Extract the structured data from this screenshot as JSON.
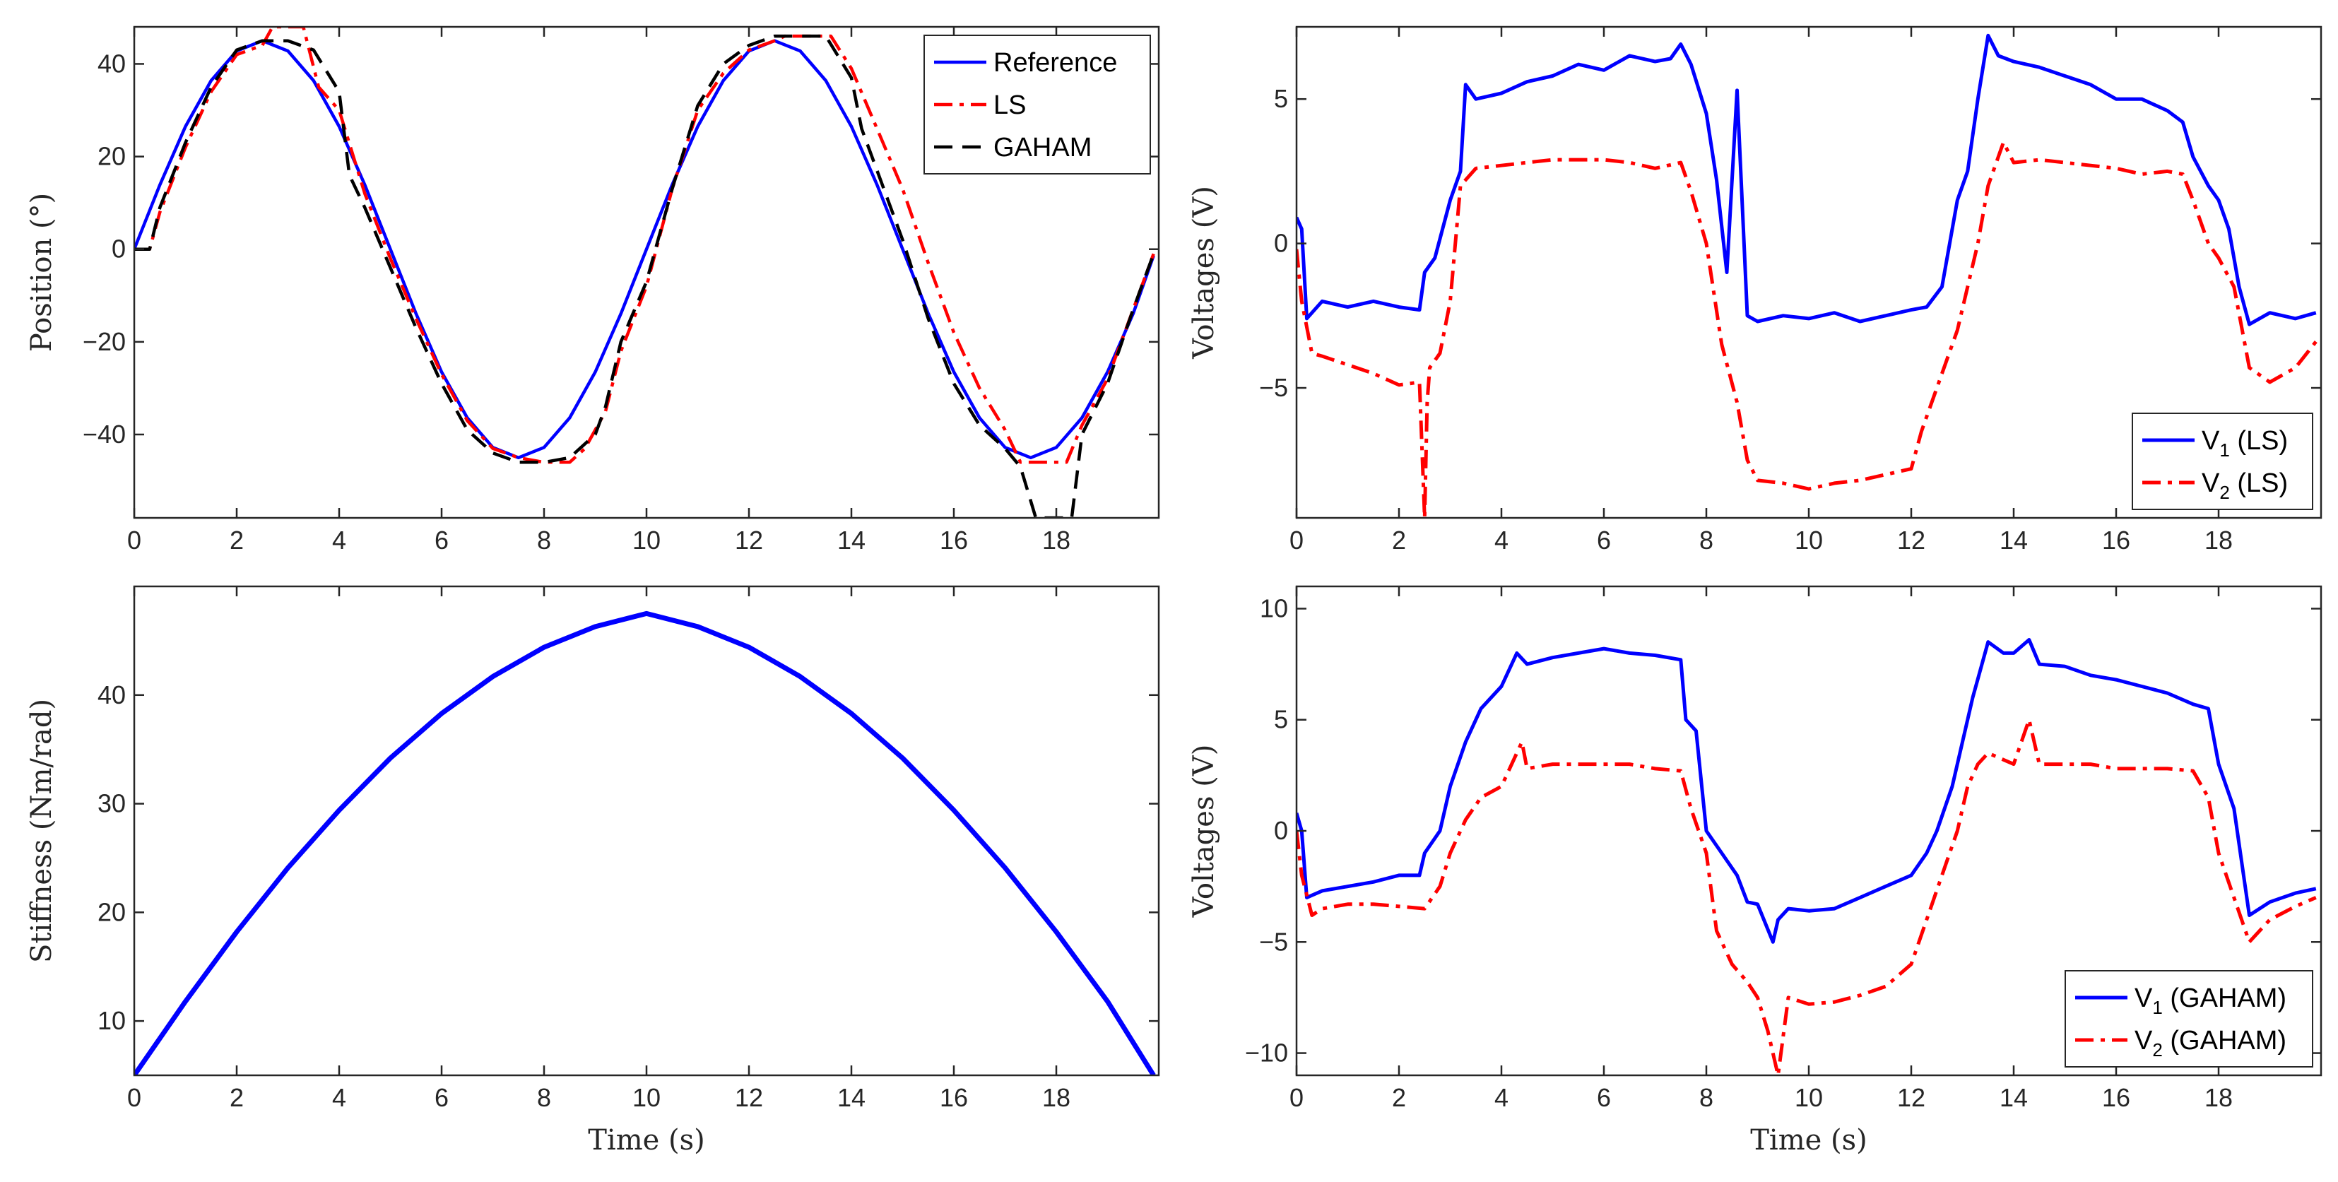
{
  "chart_data": [
    {
      "id": "position",
      "type": "line",
      "xlabel": "",
      "ylabel": "Position (°)",
      "xlim": [
        0,
        20
      ],
      "ylim": [
        -58,
        48
      ],
      "xticks": [
        0,
        2,
        4,
        6,
        8,
        10,
        12,
        14,
        16,
        18
      ],
      "yticks": [
        -40,
        -20,
        0,
        20,
        40
      ],
      "legend_position": "top-right",
      "series": [
        {
          "name": "Reference",
          "color": "#0000ff",
          "style": "solid",
          "x": [
            0,
            0.5,
            1,
            1.5,
            2,
            2.5,
            3,
            3.5,
            4,
            4.5,
            5,
            5.5,
            6,
            6.5,
            7,
            7.5,
            8,
            8.5,
            9,
            9.5,
            10,
            10.5,
            11,
            11.5,
            12,
            12.5,
            13,
            13.5,
            14,
            14.5,
            15,
            15.5,
            16,
            16.5,
            17,
            17.5,
            18,
            18.5,
            19,
            19.5,
            19.9
          ],
          "y": [
            0,
            13.9,
            26.5,
            36.4,
            42.8,
            45,
            42.8,
            36.4,
            26.5,
            13.9,
            0,
            -13.9,
            -26.5,
            -36.4,
            -42.8,
            -45,
            -42.8,
            -36.4,
            -26.5,
            -13.9,
            0,
            13.9,
            26.5,
            36.4,
            42.8,
            45,
            42.8,
            36.4,
            26.5,
            13.9,
            0,
            -13.9,
            -26.5,
            -36.4,
            -42.8,
            -45,
            -42.8,
            -36.4,
            -26.5,
            -13.9,
            -1.4
          ]
        },
        {
          "name": "LS",
          "color": "#ff0000",
          "style": "dashdot",
          "x": [
            0,
            0.3,
            0.5,
            1,
            1.5,
            2,
            2.5,
            2.7,
            3.3,
            3.6,
            4,
            4.5,
            5,
            5.5,
            6,
            6.5,
            7,
            7.5,
            8,
            8.5,
            8.8,
            9.2,
            9.5,
            10,
            10.5,
            11,
            11.5,
            12,
            12.5,
            12.7,
            13.6,
            14,
            14.5,
            15,
            15.5,
            16,
            16.5,
            17,
            17.3,
            18.2,
            18.5,
            19,
            19.5,
            19.9
          ],
          "y": [
            0,
            0,
            8,
            22,
            34,
            42,
            44,
            48,
            48,
            35,
            30,
            12,
            -2,
            -15,
            -27,
            -37,
            -43,
            -45,
            -46,
            -46,
            -43,
            -35,
            -22,
            -8,
            13,
            30,
            38,
            43,
            45,
            46,
            46,
            39,
            26,
            13,
            -3,
            -18,
            -30,
            -39,
            -46,
            -46,
            -38,
            -28,
            -13,
            -1
          ]
        },
        {
          "name": "GAHAM",
          "color": "#000000",
          "style": "dash",
          "x": [
            0,
            0.3,
            0.5,
            1,
            1.5,
            2,
            2.5,
            3,
            3.5,
            4,
            4.2,
            4.5,
            5,
            5.5,
            6,
            6.5,
            7,
            7.5,
            8,
            8.5,
            9,
            9.2,
            9.5,
            10,
            10.5,
            11,
            11.5,
            12,
            12.5,
            13,
            13.5,
            14,
            14.2,
            14.5,
            15,
            15.5,
            16,
            16.5,
            17,
            17.3,
            17.6,
            18.3,
            18.5,
            19,
            19.5,
            19.9
          ],
          "y": [
            0,
            0,
            9,
            23,
            35,
            43,
            45,
            45,
            43,
            34,
            16,
            9,
            -4,
            -17,
            -29,
            -39,
            -44,
            -46,
            -46,
            -45,
            -40,
            -34,
            -20,
            -7,
            13,
            31,
            40,
            44,
            46,
            46,
            46,
            37,
            26,
            17,
            2,
            -15,
            -29,
            -38,
            -43,
            -47,
            -58,
            -58,
            -40,
            -29,
            -13,
            -1
          ]
        }
      ]
    },
    {
      "id": "stiffness",
      "type": "line",
      "xlabel": "Time (s)",
      "ylabel": "Stiffness (Nm/rad)",
      "xlim": [
        0,
        20
      ],
      "ylim": [
        5,
        50
      ],
      "xticks": [
        0,
        2,
        4,
        6,
        8,
        10,
        12,
        14,
        16,
        18
      ],
      "yticks": [
        10,
        20,
        30,
        40
      ],
      "series": [
        {
          "name": "Stiffness",
          "color": "#0000ff",
          "style": "solid",
          "x": [
            0,
            1,
            2,
            3,
            4,
            5,
            6,
            7,
            8,
            9,
            10,
            11,
            12,
            13,
            14,
            15,
            16,
            17,
            18,
            19,
            19.9
          ],
          "y": [
            5,
            11.8,
            18.2,
            24.1,
            29.4,
            34.2,
            38.3,
            41.7,
            44.4,
            46.3,
            47.5,
            46.3,
            44.4,
            41.7,
            38.3,
            34.2,
            29.4,
            24.1,
            18.2,
            11.8,
            5
          ]
        }
      ]
    },
    {
      "id": "voltages_ls",
      "type": "line",
      "xlabel": "",
      "ylabel": "Voltages (V)",
      "xlim": [
        0,
        20
      ],
      "ylim": [
        -9.5,
        7.5
      ],
      "xticks": [
        0,
        2,
        4,
        6,
        8,
        10,
        12,
        14,
        16,
        18
      ],
      "yticks": [
        -5,
        0,
        5
      ],
      "legend_position": "bottom-right",
      "series": [
        {
          "name": "V",
          "subscript": "1",
          "suffix": " (LS)",
          "color": "#0000ff",
          "style": "solid",
          "x": [
            0,
            0.1,
            0.2,
            0.5,
            1,
            1.5,
            2,
            2.4,
            2.5,
            2.7,
            3,
            3.2,
            3.3,
            3.5,
            4,
            4.5,
            5,
            5.5,
            6,
            6.5,
            7,
            7.3,
            7.5,
            7.7,
            8,
            8.2,
            8.4,
            8.6,
            8.8,
            9,
            9.5,
            10,
            10.5,
            11,
            11.5,
            12,
            12.3,
            12.6,
            12.9,
            13.1,
            13.3,
            13.5,
            13.7,
            14,
            14.5,
            15,
            15.5,
            16,
            16.5,
            17,
            17.3,
            17.5,
            17.8,
            18,
            18.2,
            18.4,
            18.6,
            19,
            19.5,
            19.9
          ],
          "y": [
            0.9,
            0.5,
            -2.6,
            -2,
            -2.2,
            -2,
            -2.2,
            -2.3,
            -1,
            -0.5,
            1.5,
            2.5,
            5.5,
            5,
            5.2,
            5.6,
            5.8,
            6.2,
            6,
            6.5,
            6.3,
            6.4,
            6.9,
            6.2,
            4.5,
            2.2,
            -1,
            5.3,
            -2.5,
            -2.7,
            -2.5,
            -2.6,
            -2.4,
            -2.7,
            -2.5,
            -2.3,
            -2.2,
            -1.5,
            1.5,
            2.5,
            5,
            7.2,
            6.5,
            6.3,
            6.1,
            5.8,
            5.5,
            5,
            5,
            4.6,
            4.2,
            3,
            2,
            1.5,
            0.5,
            -1.5,
            -2.8,
            -2.4,
            -2.6,
            -2.4
          ]
        },
        {
          "name": "V",
          "subscript": "2",
          "suffix": " (LS)",
          "color": "#ff0000",
          "style": "dashdot",
          "x": [
            0,
            0.1,
            0.3,
            0.5,
            1,
            1.5,
            2,
            2.4,
            2.5,
            2.55,
            2.6,
            2.8,
            3,
            3.2,
            3.5,
            4,
            4.5,
            5,
            5.5,
            6,
            6.5,
            7,
            7.5,
            7.7,
            8,
            8.3,
            8.6,
            8.8,
            9,
            9.5,
            10,
            10.5,
            11,
            11.5,
            12,
            12.2,
            12.5,
            12.9,
            13.1,
            13.3,
            13.5,
            13.8,
            14,
            14.5,
            15,
            15.5,
            16,
            16.5,
            17,
            17.3,
            17.5,
            17.8,
            18,
            18.3,
            18.6,
            19,
            19.5,
            19.9
          ],
          "y": [
            -0.2,
            -2,
            -3.8,
            -3.9,
            -4.2,
            -4.5,
            -4.9,
            -4.8,
            -9.5,
            -5.5,
            -4.3,
            -3.8,
            -2,
            2,
            2.6,
            2.7,
            2.8,
            2.9,
            2.9,
            2.9,
            2.8,
            2.6,
            2.8,
            1.8,
            0,
            -3.5,
            -5.5,
            -7.5,
            -8.2,
            -8.3,
            -8.5,
            -8.3,
            -8.2,
            -8,
            -7.8,
            -6.5,
            -5,
            -3,
            -1.5,
            0,
            2,
            3.5,
            2.8,
            2.9,
            2.8,
            2.7,
            2.6,
            2.4,
            2.5,
            2.4,
            1.5,
            0,
            -0.5,
            -1.5,
            -4.3,
            -4.8,
            -4.3,
            -3.4
          ]
        }
      ]
    },
    {
      "id": "voltages_gaham",
      "type": "line",
      "xlabel": "Time (s)",
      "ylabel": "Voltages (V)",
      "xlim": [
        0,
        20
      ],
      "ylim": [
        -11,
        11
      ],
      "xticks": [
        0,
        2,
        4,
        6,
        8,
        10,
        12,
        14,
        16,
        18
      ],
      "yticks": [
        -10,
        -5,
        0,
        5,
        10
      ],
      "legend_position": "bottom-right",
      "series": [
        {
          "name": "V",
          "subscript": "1",
          "suffix": " (GAHAM)",
          "color": "#0000ff",
          "style": "solid",
          "x": [
            0,
            0.1,
            0.2,
            0.5,
            1,
            1.5,
            2,
            2.4,
            2.5,
            2.8,
            3,
            3.3,
            3.6,
            4,
            4.3,
            4.5,
            5,
            5.5,
            6,
            6.5,
            7,
            7.5,
            7.6,
            7.8,
            8,
            8.3,
            8.6,
            8.8,
            9,
            9.3,
            9.4,
            9.6,
            10,
            10.5,
            11,
            11.5,
            12,
            12.3,
            12.5,
            12.8,
            13,
            13.2,
            13.5,
            13.8,
            14,
            14.3,
            14.5,
            15,
            15.5,
            16,
            16.5,
            17,
            17.5,
            17.8,
            18,
            18.3,
            18.6,
            19,
            19.5,
            19.9
          ],
          "y": [
            0.8,
            0,
            -3,
            -2.7,
            -2.5,
            -2.3,
            -2,
            -2,
            -1,
            0,
            2,
            4,
            5.5,
            6.5,
            8,
            7.5,
            7.8,
            8,
            8.2,
            8,
            7.9,
            7.7,
            5,
            4.5,
            0,
            -1,
            -2,
            -3.2,
            -3.3,
            -5,
            -4,
            -3.5,
            -3.6,
            -3.5,
            -3,
            -2.5,
            -2,
            -1,
            0,
            2,
            4,
            6,
            8.5,
            8,
            8,
            8.6,
            7.5,
            7.4,
            7,
            6.8,
            6.5,
            6.2,
            5.7,
            5.5,
            3,
            1,
            -3.8,
            -3.2,
            -2.8,
            -2.6
          ]
        },
        {
          "name": "V",
          "subscript": "2",
          "suffix": " (GAHAM)",
          "color": "#ff0000",
          "style": "dashdot",
          "x": [
            0,
            0.1,
            0.3,
            0.5,
            1,
            1.5,
            2,
            2.5,
            2.8,
            3,
            3.3,
            3.6,
            4,
            4.4,
            4.5,
            5,
            5.5,
            6,
            6.5,
            7,
            7.5,
            7.7,
            8,
            8.2,
            8.5,
            8.8,
            9,
            9.2,
            9.4,
            9.6,
            10,
            10.5,
            11,
            11.5,
            12,
            12.3,
            12.6,
            12.9,
            13.1,
            13.3,
            13.5,
            13.8,
            14,
            14.3,
            14.5,
            15,
            15.5,
            16,
            16.5,
            17,
            17.5,
            17.8,
            18,
            18.3,
            18.6,
            19,
            19.5,
            19.9
          ],
          "y": [
            0,
            -2,
            -3.8,
            -3.5,
            -3.3,
            -3.3,
            -3.4,
            -3.5,
            -2.5,
            -1,
            0.5,
            1.5,
            2,
            4,
            2.8,
            3,
            3,
            3,
            3,
            2.8,
            2.7,
            1,
            -1,
            -4.5,
            -6,
            -6.8,
            -7.5,
            -9,
            -11,
            -7.5,
            -7.8,
            -7.7,
            -7.4,
            -7,
            -6,
            -4,
            -2,
            0,
            2,
            3,
            3.5,
            3.2,
            3,
            5,
            3,
            3,
            3,
            2.8,
            2.8,
            2.8,
            2.7,
            1.5,
            -1,
            -3,
            -5,
            -4,
            -3.4,
            -3
          ]
        }
      ]
    }
  ]
}
